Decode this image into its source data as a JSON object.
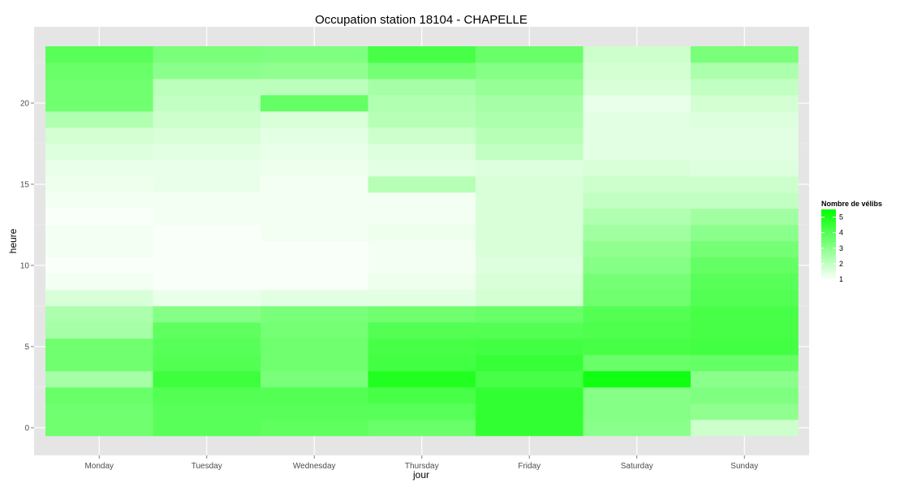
{
  "chart_data": {
    "type": "heatmap",
    "title": "Occupation station 18104 - CHAPELLE",
    "xlabel": "jour",
    "ylabel": "heure",
    "categories": [
      "Monday",
      "Tuesday",
      "Wednesday",
      "Thursday",
      "Friday",
      "Saturday",
      "Sunday"
    ],
    "y_values": [
      0,
      1,
      2,
      3,
      4,
      5,
      6,
      7,
      8,
      9,
      10,
      11,
      12,
      13,
      14,
      15,
      16,
      17,
      18,
      19,
      20,
      21,
      22,
      23
    ],
    "ylim": [
      -0.5,
      23.5
    ],
    "y_ticks": [
      0,
      5,
      10,
      15,
      20
    ],
    "grid": true,
    "legend": {
      "title": "Nombre de vélibs",
      "position": "right",
      "ticks": [
        1,
        2,
        3,
        4,
        5
      ],
      "range": [
        0.9,
        5.5
      ],
      "low_color": "#ffffff",
      "high_color": "#00ff00"
    },
    "background_color": "#e5e5e5",
    "values": [
      [
        3.5,
        3.9,
        3.8,
        3.6,
        4.6
      ],
      [
        3.5,
        3.9,
        3.9,
        3.9,
        4.6
      ],
      [
        3.6,
        4.0,
        4.0,
        4.2,
        4.6
      ],
      [
        2.5,
        4.4,
        3.3,
        4.9,
        4.2
      ],
      [
        3.5,
        4.0,
        3.5,
        4.3,
        4.5
      ],
      [
        3.5,
        3.9,
        3.5,
        4.2,
        4.3
      ],
      [
        2.5,
        3.8,
        3.4,
        4.0,
        4.0
      ],
      [
        2.4,
        3.1,
        3.3,
        3.5,
        3.6
      ],
      [
        1.6,
        1.3,
        1.4,
        1.4,
        1.7
      ],
      [
        1.1,
        1.0,
        1.0,
        1.2,
        1.6
      ],
      [
        1.0,
        1.0,
        1.0,
        1.1,
        1.5
      ],
      [
        1.1,
        1.0,
        1.0,
        1.1,
        1.6
      ],
      [
        1.1,
        1.0,
        1.1,
        1.2,
        1.6
      ],
      [
        1.0,
        1.1,
        1.1,
        1.1,
        1.6
      ],
      [
        1.1,
        1.1,
        1.1,
        1.1,
        1.6
      ],
      [
        1.2,
        1.3,
        1.1,
        2.2,
        1.6
      ],
      [
        1.3,
        1.3,
        1.2,
        1.4,
        1.5
      ],
      [
        1.5,
        1.4,
        1.3,
        1.5,
        2.0
      ],
      [
        1.7,
        1.6,
        1.4,
        1.8,
        2.2
      ],
      [
        2.3,
        1.8,
        1.6,
        2.2,
        2.4
      ],
      [
        3.5,
        2.0,
        3.7,
        2.3,
        2.5
      ],
      [
        3.5,
        2.1,
        2.1,
        2.5,
        2.8
      ],
      [
        3.6,
        3.0,
        2.9,
        3.4,
        3.1
      ],
      [
        3.9,
        3.3,
        3.2,
        4.2,
        3.6
      ]
    ],
    "values_weekend": [
      [
        3.0,
        1.8
      ],
      [
        3.1,
        2.9
      ],
      [
        3.1,
        3.2
      ],
      [
        5.2,
        3.0
      ],
      [
        3.6,
        3.7
      ],
      [
        4.2,
        4.3
      ],
      [
        4.1,
        4.2
      ],
      [
        4.0,
        4.2
      ],
      [
        3.5,
        4.0
      ],
      [
        3.4,
        3.9
      ],
      [
        3.1,
        3.7
      ],
      [
        2.9,
        3.4
      ],
      [
        2.6,
        3.0
      ],
      [
        2.3,
        2.6
      ],
      [
        2.0,
        2.0
      ],
      [
        1.8,
        1.8
      ],
      [
        1.6,
        1.5
      ],
      [
        1.4,
        1.4
      ],
      [
        1.4,
        1.4
      ],
      [
        1.4,
        1.5
      ],
      [
        1.3,
        1.7
      ],
      [
        1.6,
        2.0
      ],
      [
        1.7,
        2.4
      ],
      [
        1.8,
        3.3
      ]
    ]
  }
}
